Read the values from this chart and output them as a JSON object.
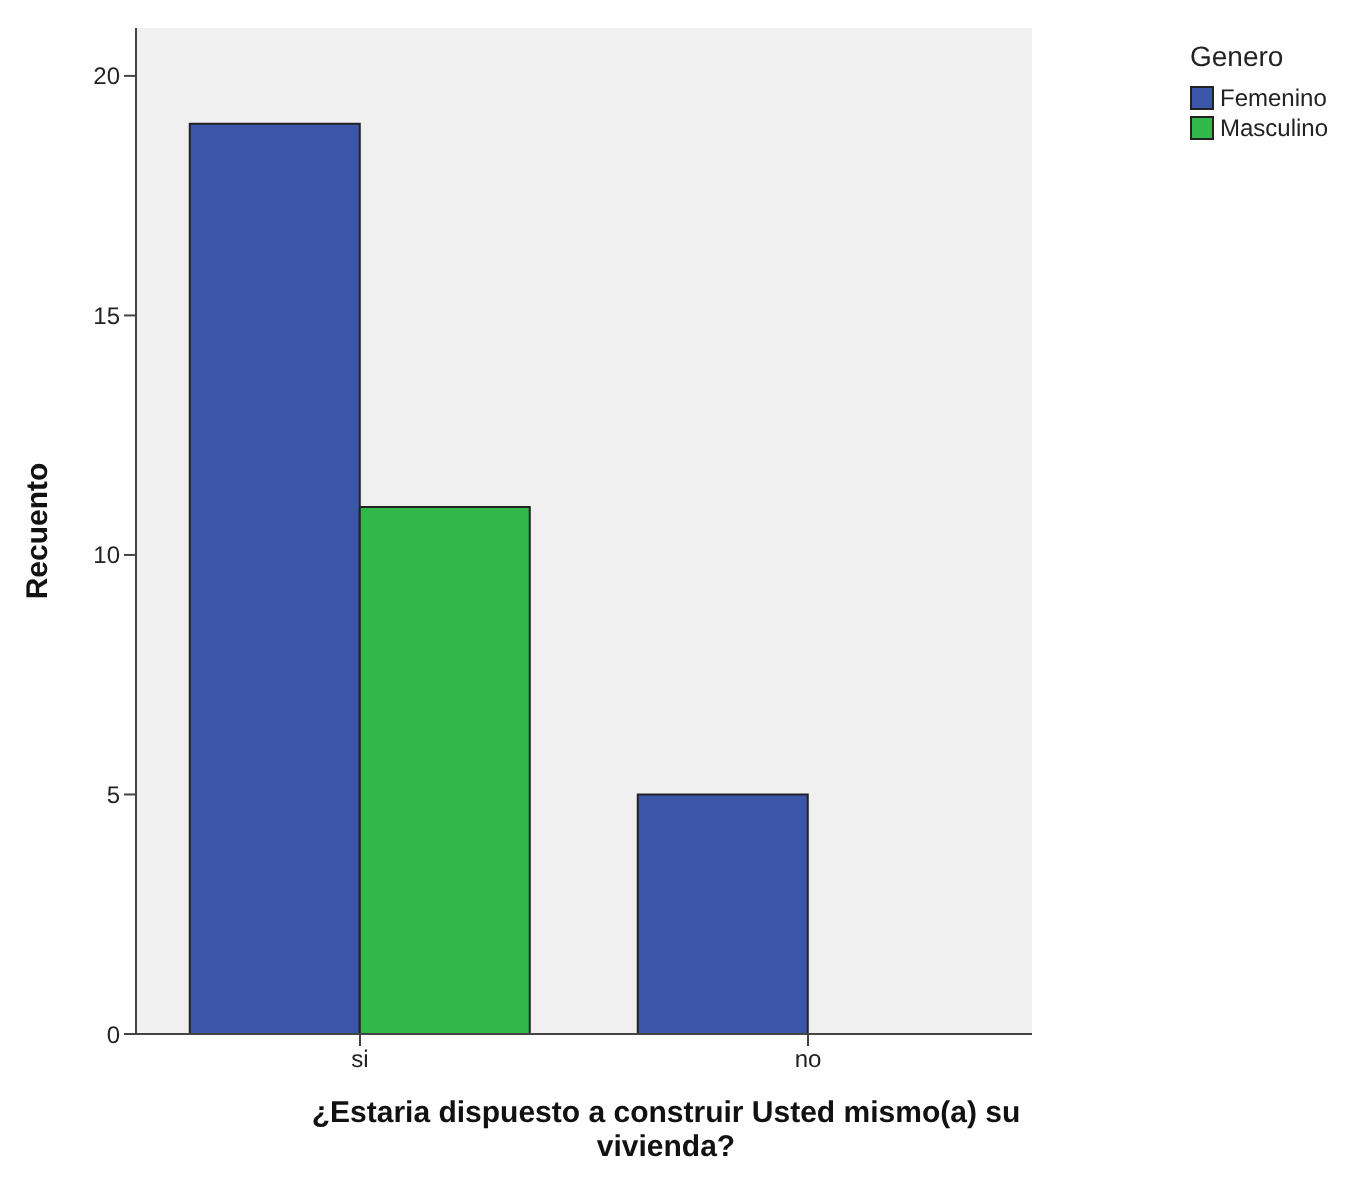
{
  "chart_data": {
    "type": "bar",
    "xlabel": "¿Estaria dispuesto a construir Usted mismo(a) su vivienda?",
    "ylabel": "Recuento",
    "legend_title": "Genero",
    "categories": [
      "si",
      "no"
    ],
    "series": [
      {
        "name": "Femenino",
        "color": "#3b55a8",
        "values": [
          19,
          5
        ]
      },
      {
        "name": "Masculino",
        "color": "#30b84a",
        "values": [
          11,
          0
        ]
      }
    ],
    "ylim": [
      0,
      21
    ],
    "yticks": [
      0,
      5,
      10,
      15,
      20
    ],
    "grid": false,
    "legend": "top right"
  }
}
